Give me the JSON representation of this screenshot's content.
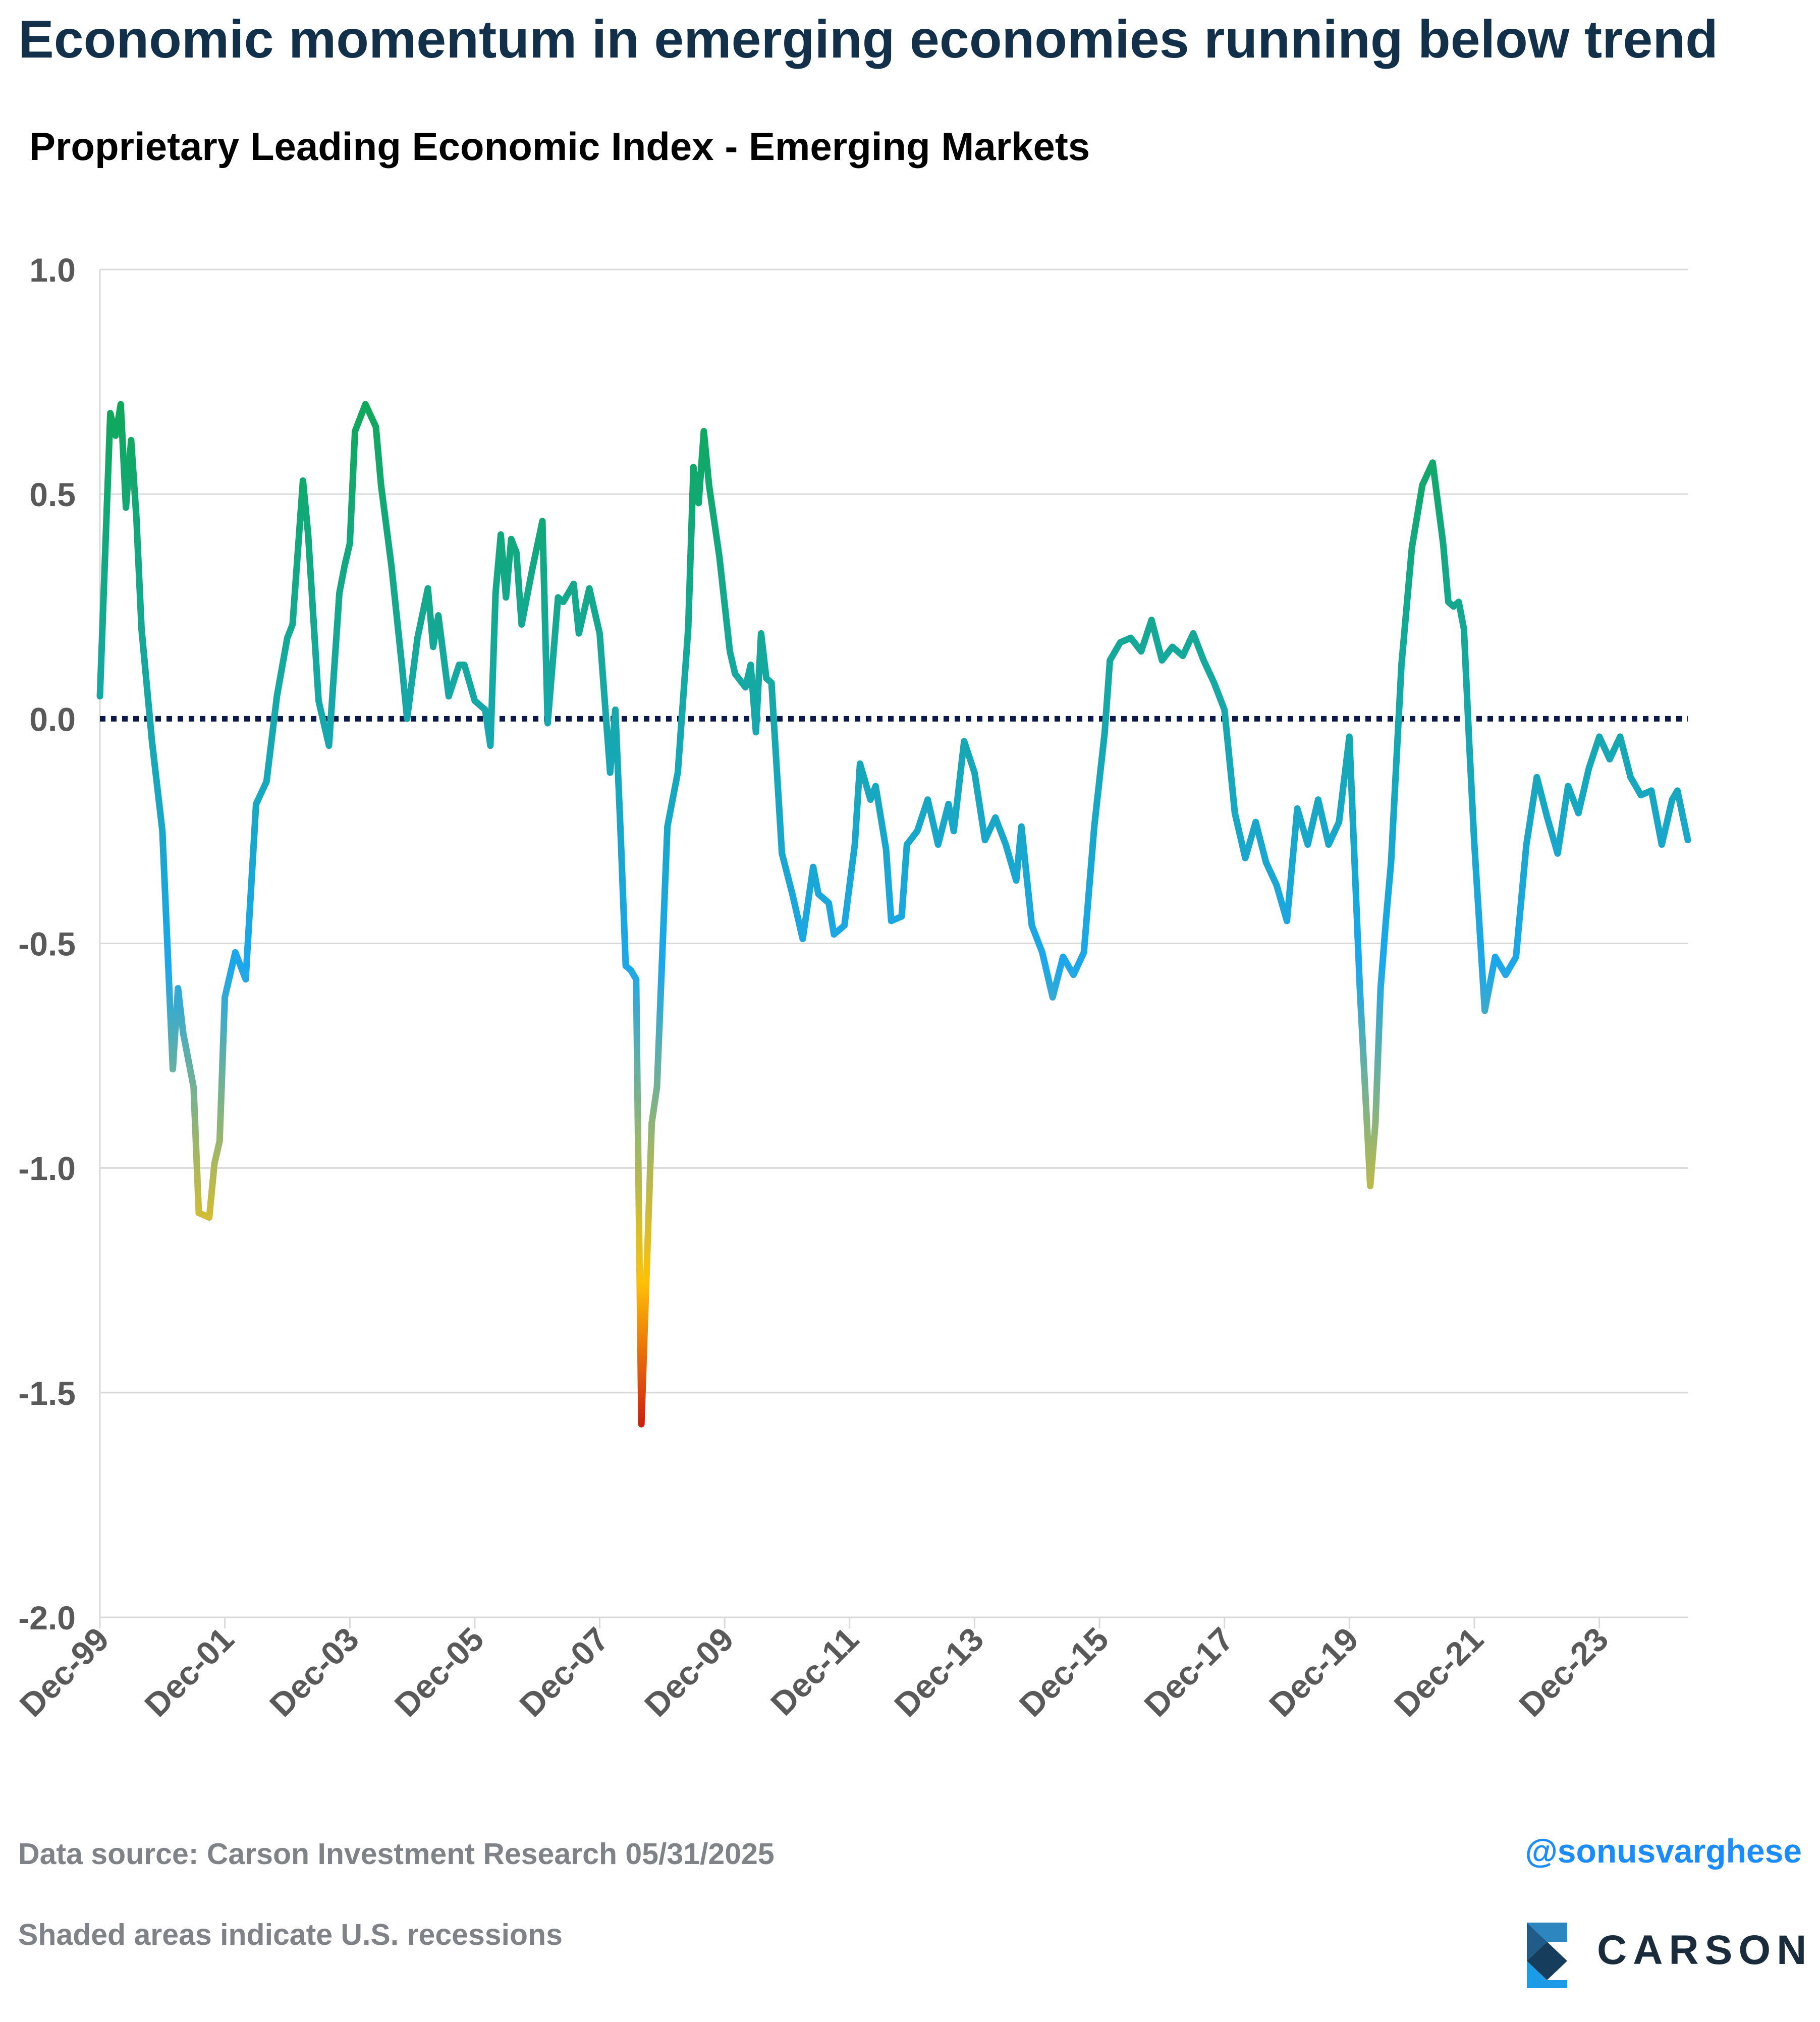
{
  "header": {
    "title": "Economic momentum in emerging economies running below trend",
    "subtitle": "Proprietary Leading Economic Index - Emerging Markets"
  },
  "footer": {
    "source": "Data source: Carson Investment Research   05/31/2025",
    "note": "Shaded areas indicate U.S. recessions",
    "handle": "@sonusvarghese",
    "logo_text": "CARSON"
  },
  "colors": {
    "line_high": "#10a85a",
    "line_mid": "#1ba7ec",
    "line_low_yellow": "#ffc107",
    "line_low_red": "#d01f0e",
    "zero_line": "#0b1a4a",
    "grid": "#d9d9d9",
    "tick_text": "#595959"
  },
  "chart_data": {
    "type": "line",
    "title": "Proprietary Leading Economic Index - Emerging Markets",
    "xlabel": "",
    "ylabel": "",
    "ylim": [
      -2.0,
      1.0
    ],
    "y_ticks": [
      "1.0",
      "0.5",
      "0.0",
      "-0.5",
      "-1.0",
      "-1.5",
      "-2.0"
    ],
    "y_tick_values": [
      1.0,
      0.5,
      0.0,
      -0.5,
      -1.0,
      -1.5,
      -2.0
    ],
    "x_range": [
      "1999-12",
      "2025-05"
    ],
    "x_ticks": [
      "Dec-99",
      "Dec-01",
      "Dec-03",
      "Dec-05",
      "Dec-07",
      "Dec-09",
      "Dec-11",
      "Dec-13",
      "Dec-15",
      "Dec-17",
      "Dec-19",
      "Dec-21",
      "Dec-23"
    ],
    "x_tick_dates": [
      "1999-12",
      "2001-12",
      "2003-12",
      "2005-12",
      "2007-12",
      "2009-12",
      "2011-12",
      "2013-12",
      "2015-12",
      "2017-12",
      "2019-12",
      "2021-12",
      "2023-12"
    ],
    "grid": true,
    "reference_line": 0.0,
    "legend": "none",
    "series": [
      {
        "x": [
          "1999-12",
          "2000-02",
          "2000-03",
          "2000-04",
          "2000-05",
          "2000-06",
          "2000-07",
          "2000-08",
          "2000-10",
          "2000-12",
          "2001-02",
          "2001-03",
          "2001-04",
          "2001-06",
          "2001-07",
          "2001-09",
          "2001-10",
          "2001-11",
          "2001-12",
          "2002-02",
          "2002-04",
          "2002-06",
          "2002-08",
          "2002-10",
          "2002-12",
          "2003-01",
          "2003-03",
          "2003-04",
          "2003-06",
          "2003-08",
          "2003-10",
          "2003-11",
          "2003-12",
          "2004-01",
          "2004-03",
          "2004-05",
          "2004-06",
          "2004-08",
          "2004-10",
          "2004-11",
          "2005-01",
          "2005-03",
          "2005-04",
          "2005-05",
          "2005-07",
          "2005-09",
          "2005-10",
          "2005-12",
          "2006-02",
          "2006-03",
          "2006-04",
          "2006-05",
          "2006-06",
          "2006-07",
          "2006-08",
          "2006-09",
          "2006-11",
          "2007-01",
          "2007-02",
          "2007-04",
          "2007-05",
          "2007-07",
          "2007-08",
          "2007-10",
          "2007-12",
          "2008-02",
          "2008-03",
          "2008-04",
          "2008-05",
          "2008-06",
          "2008-07",
          "2008-08",
          "2008-10",
          "2008-11",
          "2009-01",
          "2009-03",
          "2009-05",
          "2009-06",
          "2009-07",
          "2009-08",
          "2009-09",
          "2009-11",
          "2010-01",
          "2010-02",
          "2010-04",
          "2010-05",
          "2010-06",
          "2010-07",
          "2010-08",
          "2010-09",
          "2010-11",
          "2011-01",
          "2011-03",
          "2011-05",
          "2011-06",
          "2011-08",
          "2011-09",
          "2011-11",
          "2012-01",
          "2012-02",
          "2012-04",
          "2012-05",
          "2012-07",
          "2012-08",
          "2012-10",
          "2012-11",
          "2013-01",
          "2013-03",
          "2013-05",
          "2013-07",
          "2013-08",
          "2013-10",
          "2013-12",
          "2014-02",
          "2014-04",
          "2014-06",
          "2014-08",
          "2014-09",
          "2014-11",
          "2015-01",
          "2015-03",
          "2015-05",
          "2015-07",
          "2015-09",
          "2015-11",
          "2016-01",
          "2016-02",
          "2016-04",
          "2016-06",
          "2016-08",
          "2016-10",
          "2016-12",
          "2017-02",
          "2017-04",
          "2017-06",
          "2017-08",
          "2017-10",
          "2017-12",
          "2018-02",
          "2018-04",
          "2018-06",
          "2018-08",
          "2018-10",
          "2018-12",
          "2019-02",
          "2019-04",
          "2019-06",
          "2019-08",
          "2019-10",
          "2019-12",
          "2020-02",
          "2020-04",
          "2020-05",
          "2020-06",
          "2020-07",
          "2020-08",
          "2020-10",
          "2020-12",
          "2021-02",
          "2021-04",
          "2021-06",
          "2021-07",
          "2021-08",
          "2021-09",
          "2021-10",
          "2021-11",
          "2021-12",
          "2022-02",
          "2022-04",
          "2022-06",
          "2022-08",
          "2022-10",
          "2022-12",
          "2023-02",
          "2023-04",
          "2023-06",
          "2023-08",
          "2023-10",
          "2023-12",
          "2024-02",
          "2024-04",
          "2024-06",
          "2024-08",
          "2024-10",
          "2024-12",
          "2025-02",
          "2025-03",
          "2025-05"
        ],
        "values": [
          0.05,
          0.68,
          0.63,
          0.7,
          0.47,
          0.62,
          0.45,
          0.2,
          -0.05,
          -0.25,
          -0.78,
          -0.6,
          -0.7,
          -0.82,
          -1.1,
          -1.11,
          -0.99,
          -0.94,
          -0.62,
          -0.52,
          -0.58,
          -0.19,
          -0.14,
          0.05,
          0.18,
          0.21,
          0.53,
          0.41,
          0.04,
          -0.06,
          0.28,
          0.34,
          0.39,
          0.64,
          0.7,
          0.65,
          0.52,
          0.34,
          0.12,
          0.0,
          0.18,
          0.29,
          0.16,
          0.23,
          0.05,
          0.12,
          0.12,
          0.04,
          0.02,
          -0.06,
          0.28,
          0.41,
          0.27,
          0.4,
          0.37,
          0.21,
          0.33,
          0.44,
          -0.01,
          0.27,
          0.26,
          0.3,
          0.19,
          0.29,
          0.19,
          -0.12,
          0.02,
          -0.25,
          -0.55,
          -0.56,
          -0.58,
          -1.57,
          -0.9,
          -0.82,
          -0.24,
          -0.12,
          0.2,
          0.56,
          0.48,
          0.64,
          0.52,
          0.36,
          0.15,
          0.1,
          0.07,
          0.12,
          -0.03,
          0.19,
          0.09,
          0.08,
          -0.3,
          -0.39,
          -0.49,
          -0.33,
          -0.39,
          -0.41,
          -0.48,
          -0.46,
          -0.28,
          -0.1,
          -0.18,
          -0.15,
          -0.29,
          -0.45,
          -0.44,
          -0.28,
          -0.25,
          -0.18,
          -0.28,
          -0.19,
          -0.25,
          -0.05,
          -0.12,
          -0.27,
          -0.22,
          -0.28,
          -0.36,
          -0.24,
          -0.46,
          -0.52,
          -0.62,
          -0.53,
          -0.57,
          -0.52,
          -0.24,
          -0.03,
          0.13,
          0.17,
          0.18,
          0.15,
          0.22,
          0.13,
          0.16,
          0.14,
          0.19,
          0.13,
          0.08,
          0.02,
          -0.21,
          -0.31,
          -0.23,
          -0.32,
          -0.37,
          -0.45,
          -0.2,
          -0.28,
          -0.18,
          -0.28,
          -0.23,
          -0.04,
          -0.6,
          -1.04,
          -0.9,
          -0.6,
          -0.45,
          -0.32,
          0.12,
          0.38,
          0.52,
          0.57,
          0.39,
          0.26,
          0.25,
          0.26,
          0.2,
          -0.05,
          -0.28,
          -0.65,
          -0.53,
          -0.57,
          -0.53,
          -0.28,
          -0.13,
          -0.22,
          -0.3,
          -0.15,
          -0.21,
          -0.11,
          -0.04,
          -0.09,
          -0.04,
          -0.13,
          -0.17,
          -0.16,
          -0.28,
          -0.18,
          -0.16,
          -0.27
        ]
      }
    ]
  }
}
